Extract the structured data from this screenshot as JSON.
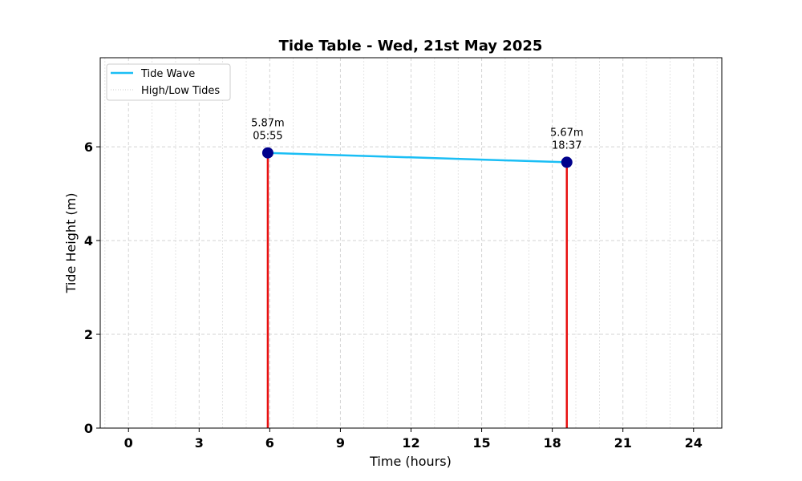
{
  "chart_data": {
    "type": "line",
    "title": "Tide Table - Wed, 21st May 2025",
    "xlabel": "Time (hours)",
    "ylabel": "Tide Height (m)",
    "xlim": [
      -1.2,
      25.2
    ],
    "ylim": [
      0,
      7.9
    ],
    "xticks": [
      0,
      3,
      6,
      9,
      12,
      15,
      18,
      21,
      24
    ],
    "xtick_labels": [
      "0",
      "3",
      "6",
      "9",
      "12",
      "15",
      "18",
      "21",
      "24"
    ],
    "yticks": [
      0,
      2,
      4,
      6
    ],
    "ytick_labels": [
      "0",
      "2",
      "4",
      "6"
    ],
    "minor_x_gridlines_every_hour": true,
    "grid": true,
    "legend_position": "top-left",
    "series": [
      {
        "name": "Tide Wave",
        "color": "#1ABEF5",
        "x": [
          5.917,
          18.617
        ],
        "y": [
          5.87,
          5.67
        ]
      }
    ],
    "tide_events": [
      {
        "x": 5.917,
        "height": 5.87,
        "height_label": "5.87m",
        "time_label": "05:55"
      },
      {
        "x": 18.617,
        "height": 5.67,
        "height_label": "5.67m",
        "time_label": "18:37"
      }
    ],
    "legend": [
      {
        "label": "Tide Wave",
        "style": "line",
        "color": "#1ABEF5"
      },
      {
        "label": "High/Low Tides",
        "style": "dotted",
        "color": "#cccccc"
      }
    ],
    "colors": {
      "tide_line": "#1ABEF5",
      "tide_marker": "#00008B",
      "event_vline": "#E81010",
      "grid": "#d3d3d3"
    }
  }
}
